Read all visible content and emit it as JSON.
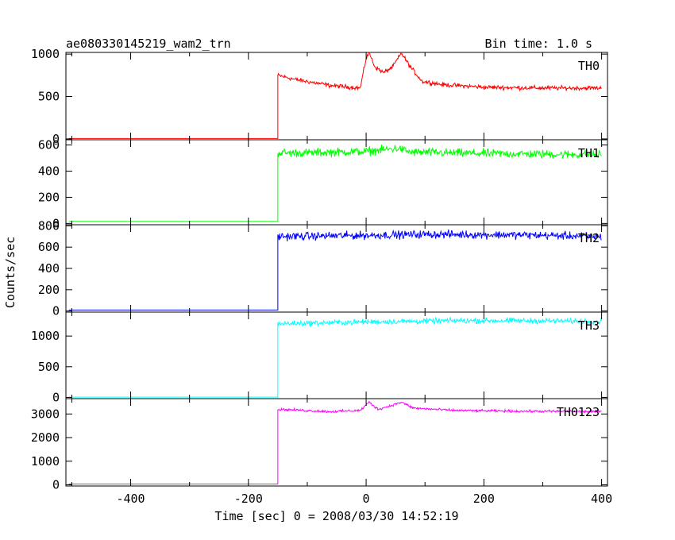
{
  "chart_data": {
    "type": "line",
    "title": "ae080330145219_wam2_trn",
    "subtitle": "Bin time: 1.0 s",
    "xlabel": "Time [sec] 0 = 2008/03/30 14:52:19",
    "ylabel": "Counts/sec",
    "xlim": [
      -510,
      410
    ],
    "xticks": [
      -400,
      -200,
      0,
      200,
      400
    ],
    "grid": false,
    "panels": [
      {
        "name": "TH0",
        "color": "#ff0000",
        "ylim": [
          -10,
          1020
        ],
        "yticks": [
          0,
          500,
          1000
        ],
        "pre_level": 5,
        "knots": [
          [
            -150,
            750
          ],
          [
            -120,
            700
          ],
          [
            -60,
            630
          ],
          [
            -10,
            600
          ],
          [
            0,
            950
          ],
          [
            5,
            1020
          ],
          [
            15,
            850
          ],
          [
            30,
            780
          ],
          [
            45,
            850
          ],
          [
            60,
            1010
          ],
          [
            75,
            850
          ],
          [
            95,
            680
          ],
          [
            130,
            640
          ],
          [
            200,
            610
          ],
          [
            300,
            600
          ],
          [
            400,
            600
          ]
        ],
        "noise": 22
      },
      {
        "name": "TH1",
        "color": "#00ff00",
        "ylim": [
          -10,
          640
        ],
        "yticks": [
          0,
          200,
          400,
          600
        ],
        "pre_level": 15,
        "knots": [
          [
            -150,
            540
          ],
          [
            -100,
            540
          ],
          [
            0,
            550
          ],
          [
            55,
            575
          ],
          [
            75,
            545
          ],
          [
            200,
            535
          ],
          [
            400,
            525
          ]
        ],
        "noise": 28
      },
      {
        "name": "TH2",
        "color": "#0000ff",
        "ylim": [
          -10,
          810
        ],
        "yticks": [
          0,
          200,
          400,
          600,
          800
        ],
        "pre_level": 10,
        "knots": [
          [
            -150,
            700
          ],
          [
            0,
            710
          ],
          [
            100,
            720
          ],
          [
            250,
            715
          ],
          [
            400,
            700
          ]
        ],
        "noise": 32
      },
      {
        "name": "TH3",
        "color": "#00ffff",
        "ylim": [
          -20,
          1390
        ],
        "yticks": [
          0,
          500,
          1000
        ],
        "pre_level": 5,
        "knots": [
          [
            -150,
            1200
          ],
          [
            0,
            1230
          ],
          [
            150,
            1250
          ],
          [
            250,
            1250
          ],
          [
            400,
            1240
          ]
        ],
        "noise": 38
      },
      {
        "name": "TH0123",
        "color": "#ff00ff",
        "ylim": [
          -50,
          3650
        ],
        "yticks": [
          0,
          1000,
          2000,
          3000
        ],
        "pre_level": 35,
        "knots": [
          [
            -150,
            3200
          ],
          [
            -60,
            3100
          ],
          [
            -10,
            3150
          ],
          [
            5,
            3500
          ],
          [
            20,
            3200
          ],
          [
            35,
            3300
          ],
          [
            60,
            3500
          ],
          [
            80,
            3250
          ],
          [
            150,
            3150
          ],
          [
            250,
            3120
          ],
          [
            400,
            3100
          ]
        ],
        "noise": 45
      }
    ]
  }
}
